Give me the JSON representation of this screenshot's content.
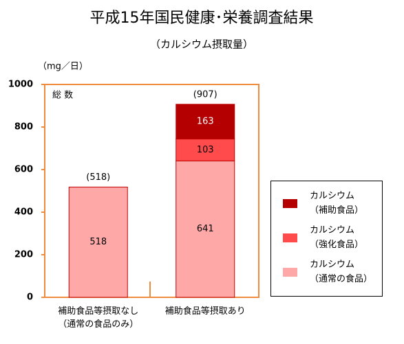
{
  "chart_data": {
    "type": "stacked_bar",
    "title": "平成15年国民健康･栄養調査結果",
    "subtitle": "（カルシウム摂取量）",
    "unit_label": "（mg／日）",
    "annotation": "総 数",
    "categories": [
      "補助食品等摂取なし\n（通常の食品のみ）",
      "補助食品等摂取あり"
    ],
    "series": [
      {
        "name": "カルシウム\n（通常の食品）",
        "color": "#ffa8a8",
        "label_color": "#000000",
        "values": [
          518,
          641
        ]
      },
      {
        "name": "カルシウム\n（強化食品）",
        "color": "#ff4b4b",
        "label_color": "#000000",
        "values": [
          null,
          103
        ]
      },
      {
        "name": "カルシウム\n（補助食品）",
        "color": "#b40000",
        "label_color": "#ffffff",
        "values": [
          null,
          163
        ]
      }
    ],
    "totals": {
      "values": [
        518,
        907
      ],
      "value_labels": [
        "(518)",
        "(907)"
      ]
    },
    "ylim": [
      0,
      1000
    ],
    "yticks": [
      0,
      200,
      400,
      600,
      800,
      1000
    ],
    "frame_color": "#f08a3c"
  }
}
